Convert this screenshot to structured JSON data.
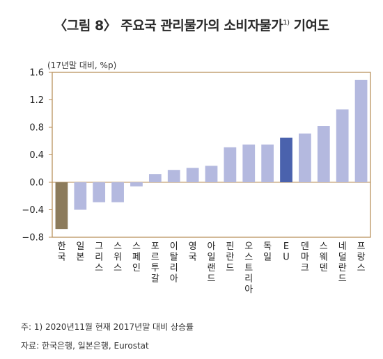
{
  "title_main": "〈그림 8〉 주요국 관리물가의 소비자물가",
  "title_sup": "1)",
  "title_tail": " 기여도",
  "unit_label": "(17년말 대비, %p)",
  "footnote": "주: 1) 2020년11월 현재 2017년말 대비 상승률",
  "source": "자료: 한국은행, 일본은행, Eurostat",
  "colors": {
    "negative_highlight": "#8c7b5b",
    "positive_highlight": "#4a62ad",
    "default_bar": "#b4b9df",
    "frame": "#b58a52"
  },
  "chart_data": {
    "type": "bar",
    "categories": [
      "한국",
      "일본",
      "그리스",
      "스위스",
      "스페인",
      "포르투갈",
      "이탈리아",
      "영국",
      "아일랜드",
      "핀란드",
      "오스트리아",
      "독일",
      "EU",
      "덴마크",
      "스웨덴",
      "네덜란드",
      "프랑스"
    ],
    "values": [
      -0.68,
      -0.4,
      -0.29,
      -0.29,
      -0.06,
      0.12,
      0.18,
      0.21,
      0.24,
      0.51,
      0.55,
      0.55,
      0.65,
      0.71,
      0.82,
      1.06,
      1.49
    ],
    "highlight": [
      "negative_highlight",
      "default_bar",
      "default_bar",
      "default_bar",
      "default_bar",
      "default_bar",
      "default_bar",
      "default_bar",
      "default_bar",
      "default_bar",
      "default_bar",
      "default_bar",
      "positive_highlight",
      "default_bar",
      "default_bar",
      "default_bar",
      "default_bar"
    ],
    "yticks": [
      "1.6",
      "1.2",
      "0.8",
      "0.4",
      "0.0",
      "−0.4",
      "−0.8"
    ],
    "ytick_values": [
      1.6,
      1.2,
      0.8,
      0.4,
      0.0,
      -0.4,
      -0.8
    ],
    "ylim": [
      -0.8,
      1.6
    ],
    "grid": false
  }
}
